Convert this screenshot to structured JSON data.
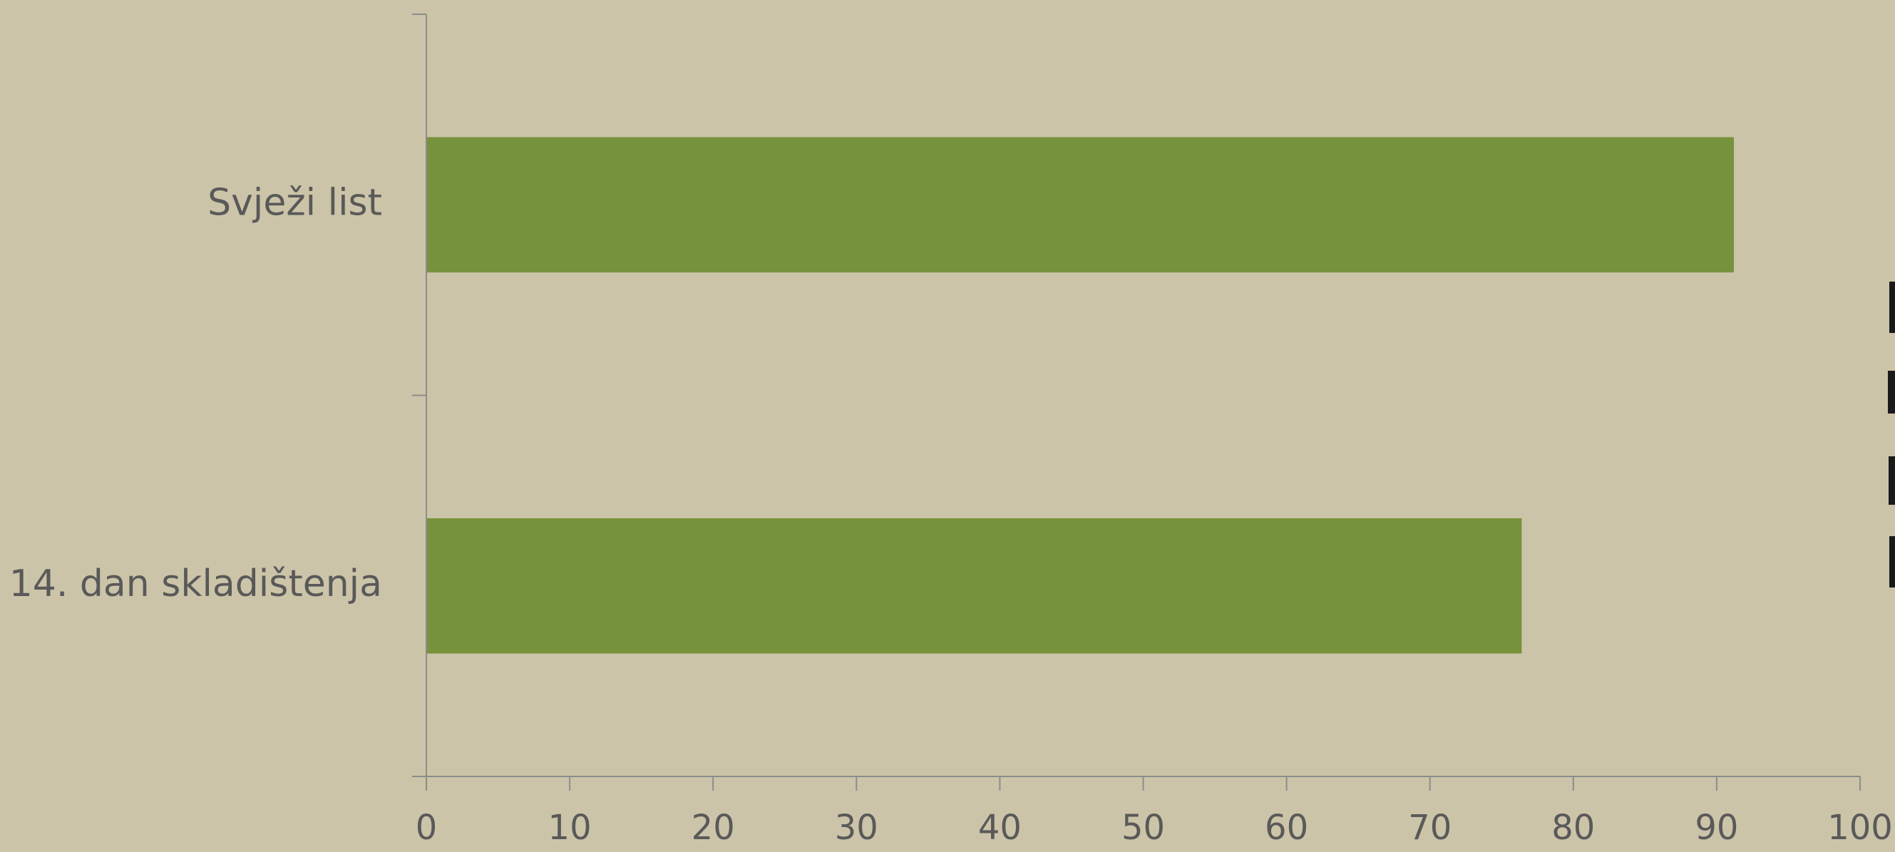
{
  "chart_data": {
    "type": "bar",
    "orientation": "horizontal",
    "categories": [
      "Svježi list",
      "14. dan skladištenja"
    ],
    "values": [
      91.2,
      76.4
    ],
    "xlim": [
      0,
      100
    ],
    "x_ticks": [
      "0",
      "10",
      "20",
      "30",
      "40",
      "50",
      "60",
      "70",
      "80",
      "90",
      "100"
    ],
    "bar_color": "#77923C",
    "axis_color": "#8C8C8C",
    "label_color": "#595959",
    "grid": false,
    "legend": "none",
    "title": "",
    "xlabel": "",
    "ylabel": ""
  }
}
